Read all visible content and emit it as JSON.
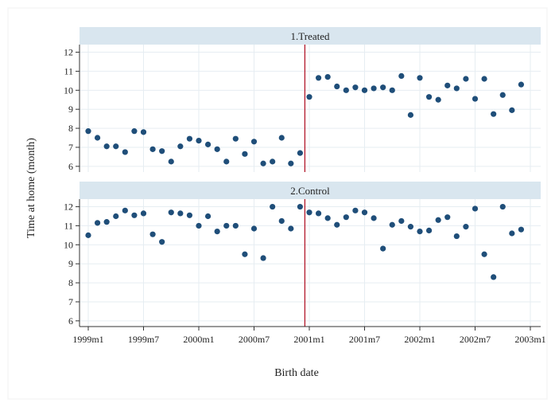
{
  "chart_data": {
    "type": "scatter",
    "xlabel": "Birth date",
    "ylabel": "Time at home (month)",
    "x_ticks": [
      "1999m1",
      "1999m7",
      "2000m1",
      "2000m7",
      "2001m1",
      "2001m7",
      "2002m1",
      "2002m7",
      "2003m1"
    ],
    "y_ticks": [
      6,
      7,
      8,
      9,
      10,
      11,
      12
    ],
    "ylim": [
      5.7,
      12.4
    ],
    "xlim": [
      "1999m1",
      "2003m1"
    ],
    "vertical_line_at": "2000m12",
    "grid": true,
    "marker_color": "#1f4e79",
    "line_color": "#b2182b",
    "strip_color": "#d9e6ef",
    "panels": [
      {
        "title": "1.Treated",
        "x": [
          "1999m1",
          "1999m2",
          "1999m3",
          "1999m4",
          "1999m5",
          "1999m6",
          "1999m7",
          "1999m8",
          "1999m9",
          "1999m10",
          "1999m11",
          "1999m12",
          "2000m1",
          "2000m2",
          "2000m3",
          "2000m4",
          "2000m5",
          "2000m6",
          "2000m7",
          "2000m8",
          "2000m9",
          "2000m10",
          "2000m11",
          "2000m12",
          "2001m1",
          "2001m2",
          "2001m3",
          "2001m4",
          "2001m5",
          "2001m6",
          "2001m7",
          "2001m8",
          "2001m9",
          "2001m10",
          "2001m11",
          "2001m12",
          "2002m1",
          "2002m2",
          "2002m3",
          "2002m4",
          "2002m5",
          "2002m6",
          "2002m7",
          "2002m8",
          "2002m9",
          "2002m10",
          "2002m11",
          "2002m12"
        ],
        "y": [
          7.85,
          7.5,
          7.05,
          7.05,
          6.75,
          7.85,
          7.8,
          6.9,
          6.8,
          6.25,
          7.05,
          7.45,
          7.35,
          7.15,
          6.9,
          6.25,
          7.45,
          6.65,
          7.3,
          6.15,
          6.25,
          7.5,
          6.15,
          6.7,
          9.65,
          10.65,
          10.7,
          10.2,
          10.0,
          10.15,
          10.0,
          10.1,
          10.15,
          10.0,
          10.75,
          8.7,
          10.65,
          9.65,
          9.5,
          10.25,
          10.1,
          10.6,
          9.55,
          10.6,
          8.75,
          9.75,
          8.95,
          10.3
        ]
      },
      {
        "title": "2.Control",
        "x": [
          "1999m1",
          "1999m2",
          "1999m3",
          "1999m4",
          "1999m5",
          "1999m6",
          "1999m7",
          "1999m8",
          "1999m9",
          "1999m10",
          "1999m11",
          "1999m12",
          "2000m1",
          "2000m2",
          "2000m3",
          "2000m4",
          "2000m5",
          "2000m6",
          "2000m7",
          "2000m8",
          "2000m9",
          "2000m10",
          "2000m11",
          "2000m12",
          "2001m1",
          "2001m2",
          "2001m3",
          "2001m4",
          "2001m5",
          "2001m6",
          "2001m7",
          "2001m8",
          "2001m9",
          "2001m10",
          "2001m11",
          "2001m12",
          "2002m1",
          "2002m2",
          "2002m3",
          "2002m4",
          "2002m5",
          "2002m6",
          "2002m7",
          "2002m8",
          "2002m9",
          "2002m10",
          "2002m11",
          "2002m12"
        ],
        "y": [
          10.5,
          11.15,
          11.2,
          11.5,
          11.8,
          11.55,
          11.65,
          10.55,
          10.15,
          11.7,
          11.65,
          11.55,
          11.0,
          11.5,
          10.7,
          11.0,
          11.0,
          9.5,
          10.85,
          9.3,
          12.0,
          11.25,
          10.85,
          12.0,
          11.7,
          11.65,
          11.4,
          11.05,
          11.45,
          11.8,
          11.7,
          11.4,
          9.8,
          11.05,
          11.25,
          10.95,
          10.7,
          10.75,
          11.3,
          11.45,
          10.45,
          10.95,
          11.9,
          9.5,
          8.3,
          12.0,
          10.6,
          10.8
        ]
      }
    ]
  }
}
